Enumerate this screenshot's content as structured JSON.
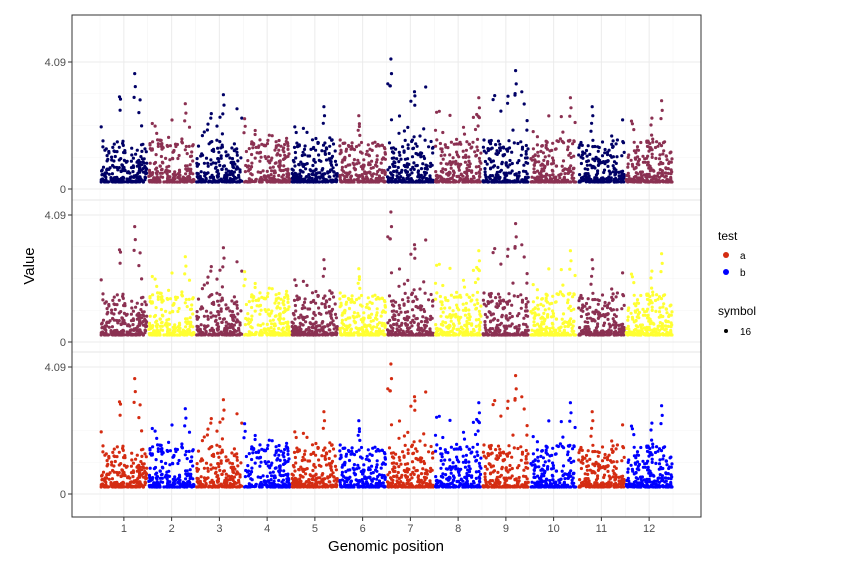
{
  "chart_data": {
    "type": "scatter",
    "title": "",
    "xlabel": "Genomic position",
    "ylabel": "Value",
    "x_ticks": [
      "1",
      "2",
      "3",
      "4",
      "5",
      "6",
      "7",
      "8",
      "9",
      "10",
      "11",
      "12"
    ],
    "ylim": [
      0,
      4.09
    ],
    "y_ticks": [
      "0",
      "4.09"
    ],
    "grid": true,
    "panels": [
      {
        "name": "top",
        "colors": {
          "odd": "#000066",
          "even": "#8B3152"
        }
      },
      {
        "name": "middle",
        "colors": {
          "odd": "#8B3152",
          "even": "#FFFF33"
        }
      },
      {
        "name": "bottom",
        "colors": {
          "odd": "#D42C12",
          "even": "#0000FF"
        }
      }
    ],
    "chromosome_max": [
      3.6,
      2.6,
      2.9,
      2.1,
      2.5,
      2.2,
      4.09,
      2.8,
      3.7,
      2.8,
      2.5,
      2.7
    ],
    "legend": {
      "position": "right",
      "test_title": "test",
      "test_items": [
        {
          "label": "a",
          "color": "#D42C12"
        },
        {
          "label": "b",
          "color": "#0000FF"
        }
      ],
      "symbol_title": "symbol",
      "symbol_items": [
        {
          "label": "16",
          "color": "#000000"
        }
      ]
    }
  }
}
